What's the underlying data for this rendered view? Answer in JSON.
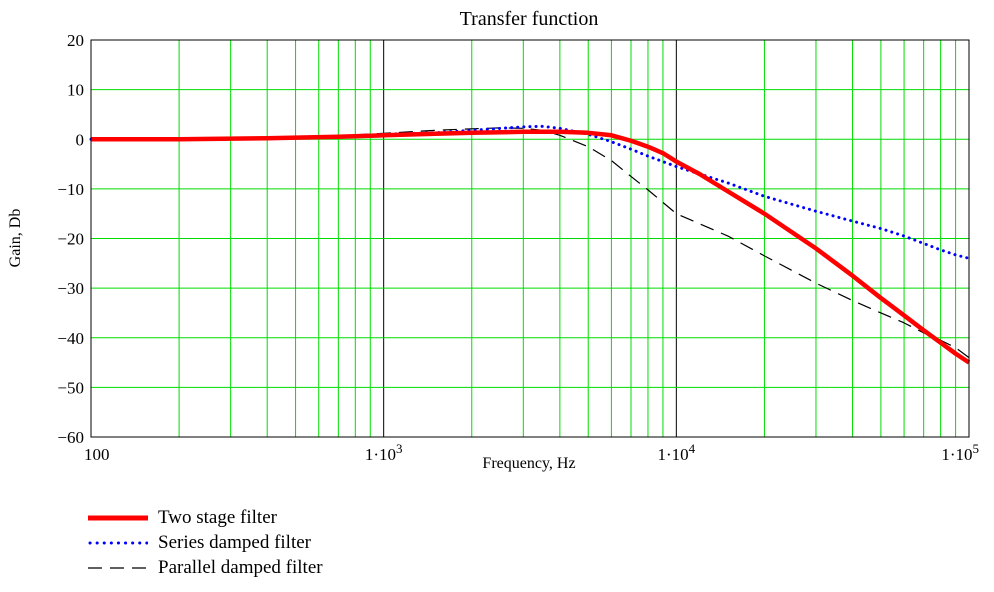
{
  "chart_data": {
    "type": "line",
    "title": "Transfer function",
    "xlabel": "Frequency, Hz",
    "ylabel": "Gain, Db",
    "x_scale": "log",
    "xlim": [
      100,
      100000
    ],
    "ylim": [
      -60,
      20
    ],
    "grid": true,
    "x_ticks": [
      {
        "value": 100,
        "label": "100",
        "base": "",
        "exp": ""
      },
      {
        "value": 1000,
        "label": "",
        "base": "1·10",
        "exp": "3"
      },
      {
        "value": 10000,
        "label": "",
        "base": "1·10",
        "exp": "4"
      },
      {
        "value": 100000,
        "label": "",
        "base": "1·10",
        "exp": "5"
      }
    ],
    "y_ticks": [
      {
        "value": 20,
        "label": "20"
      },
      {
        "value": 10,
        "label": "10"
      },
      {
        "value": 0,
        "label": "0"
      },
      {
        "value": -10,
        "label": "−10"
      },
      {
        "value": -20,
        "label": "−20"
      },
      {
        "value": -30,
        "label": "−30"
      },
      {
        "value": -40,
        "label": "−40"
      },
      {
        "value": -50,
        "label": "−50"
      },
      {
        "value": -60,
        "label": "−60"
      }
    ],
    "legend_position": "bottom-left",
    "series": [
      {
        "name": "Two stage filter",
        "color": "#ff0000",
        "style": "solid-thick",
        "points": [
          [
            100,
            0
          ],
          [
            200,
            0
          ],
          [
            400,
            0.2
          ],
          [
            700,
            0.5
          ],
          [
            1000,
            0.8
          ],
          [
            1500,
            1.1
          ],
          [
            2000,
            1.3
          ],
          [
            3000,
            1.5
          ],
          [
            4000,
            1.5
          ],
          [
            5000,
            1.3
          ],
          [
            6000,
            0.8
          ],
          [
            7000,
            -0.3
          ],
          [
            8000,
            -1.5
          ],
          [
            9000,
            -2.8
          ],
          [
            10000,
            -4.5
          ],
          [
            12000,
            -7
          ],
          [
            15000,
            -10.5
          ],
          [
            20000,
            -15
          ],
          [
            30000,
            -22
          ],
          [
            40000,
            -27.5
          ],
          [
            50000,
            -32
          ],
          [
            60000,
            -35.5
          ],
          [
            70000,
            -38.5
          ],
          [
            80000,
            -41
          ],
          [
            90000,
            -43.2
          ],
          [
            100000,
            -45
          ]
        ]
      },
      {
        "name": "Series damped filter",
        "color": "#0000ff",
        "style": "dotted",
        "points": [
          [
            100,
            0
          ],
          [
            200,
            0
          ],
          [
            400,
            0.2
          ],
          [
            700,
            0.5
          ],
          [
            1000,
            1
          ],
          [
            1500,
            1.3
          ],
          [
            2000,
            1.8
          ],
          [
            3000,
            2.5
          ],
          [
            3500,
            2.6
          ],
          [
            4000,
            2.2
          ],
          [
            5000,
            1
          ],
          [
            6000,
            -0.5
          ],
          [
            7000,
            -2
          ],
          [
            8000,
            -3.4
          ],
          [
            10000,
            -5.5
          ],
          [
            12000,
            -7
          ],
          [
            15000,
            -8.8
          ],
          [
            20000,
            -11.5
          ],
          [
            30000,
            -14.5
          ],
          [
            40000,
            -16.5
          ],
          [
            50000,
            -18
          ],
          [
            60000,
            -19.5
          ],
          [
            70000,
            -21
          ],
          [
            80000,
            -22.3
          ],
          [
            90000,
            -23.3
          ],
          [
            100000,
            -24
          ]
        ]
      },
      {
        "name": "Parallel damped filter",
        "color": "#000000",
        "style": "dashed",
        "points": [
          [
            100,
            0
          ],
          [
            200,
            0
          ],
          [
            400,
            0.3
          ],
          [
            700,
            0.7
          ],
          [
            1000,
            1.2
          ],
          [
            1500,
            1.8
          ],
          [
            2000,
            2.1
          ],
          [
            2500,
            2.3
          ],
          [
            3000,
            2.2
          ],
          [
            3500,
            1.8
          ],
          [
            4000,
            0.8
          ],
          [
            5000,
            -1.5
          ],
          [
            6000,
            -4.3
          ],
          [
            7000,
            -7.5
          ],
          [
            8000,
            -10.2
          ],
          [
            10000,
            -15
          ],
          [
            15000,
            -19.5
          ],
          [
            20000,
            -23.5
          ],
          [
            30000,
            -29
          ],
          [
            40000,
            -32.5
          ],
          [
            50000,
            -35
          ],
          [
            60000,
            -37
          ],
          [
            70000,
            -39
          ],
          [
            80000,
            -40.5
          ],
          [
            90000,
            -42
          ],
          [
            100000,
            -44
          ]
        ]
      }
    ]
  }
}
